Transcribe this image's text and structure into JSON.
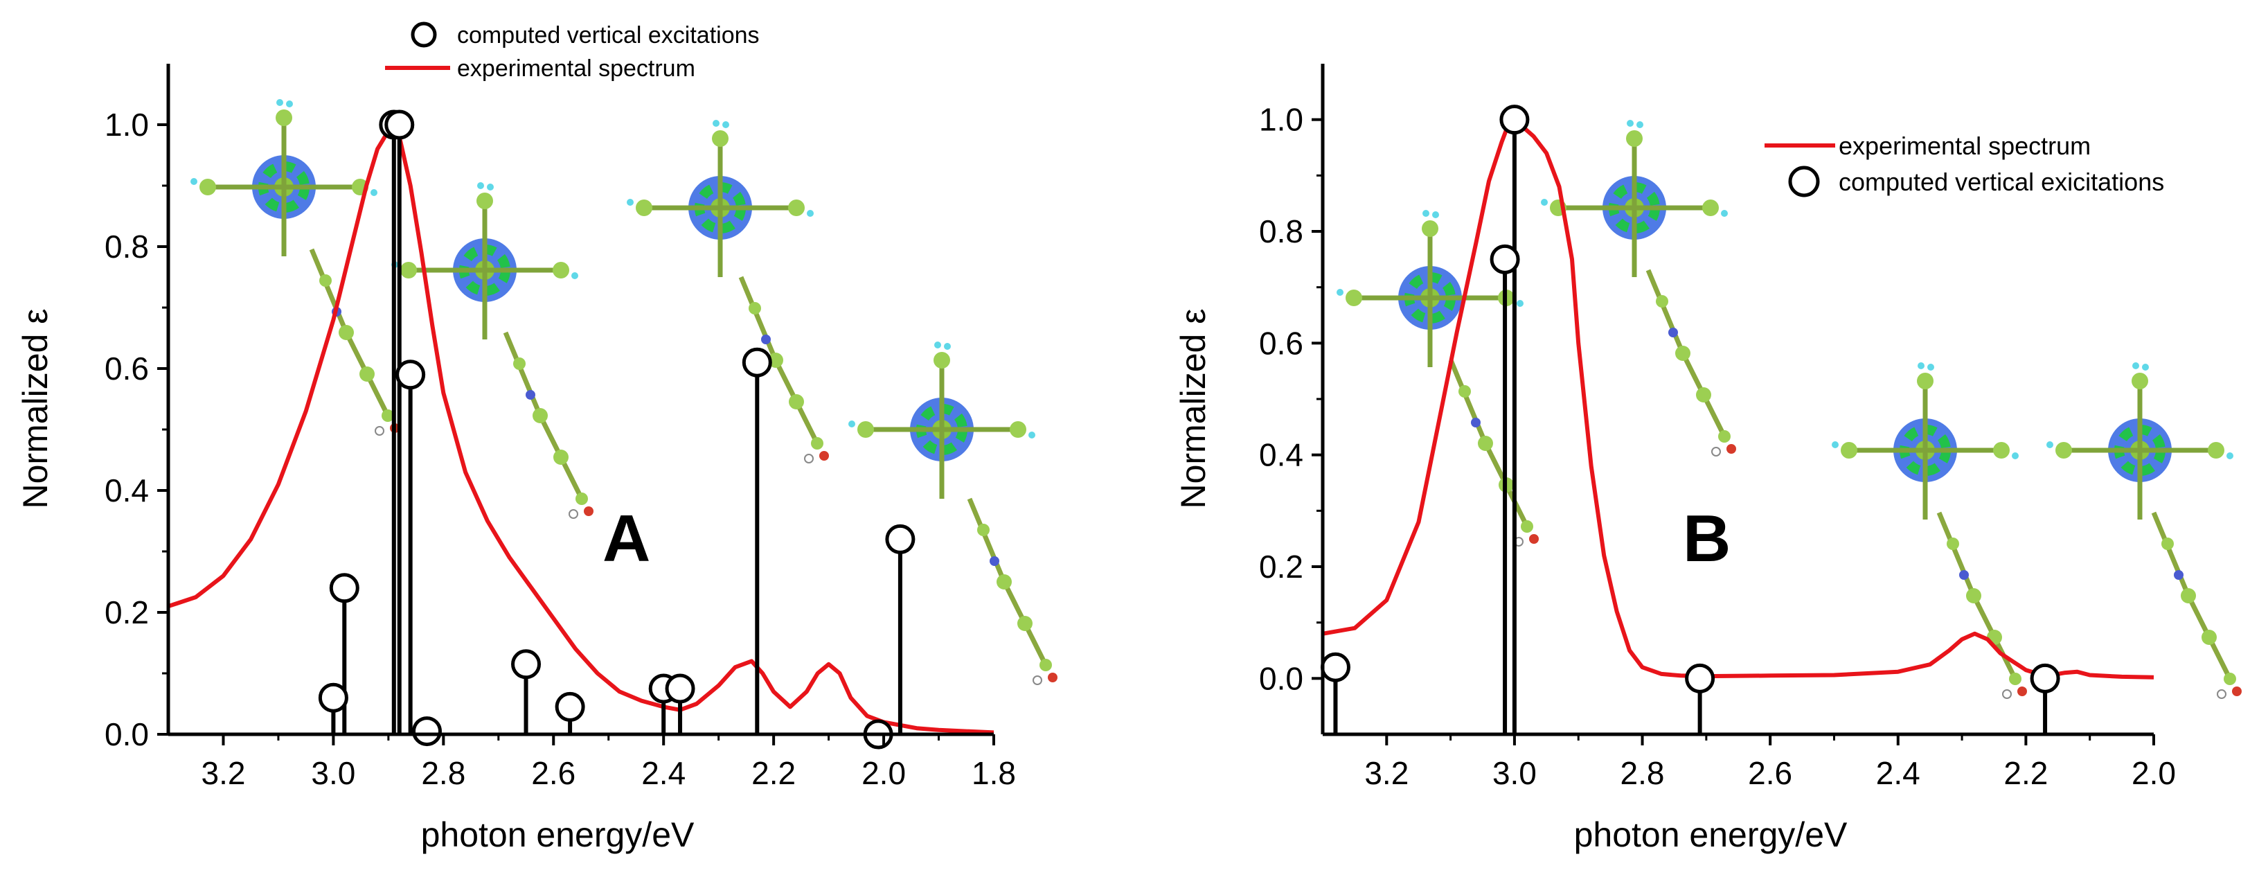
{
  "chart_data": [
    {
      "id": "A",
      "type": "line",
      "panel_label": "A",
      "xlabel": "photon energy/eV",
      "ylabel": "Normalized ε",
      "xlim": [
        3.3,
        1.8
      ],
      "ylim": [
        0.0,
        1.1
      ],
      "x_reversed": true,
      "xticks": [
        "3.2",
        "3.0",
        "2.8",
        "2.6",
        "2.4",
        "2.2",
        "2.0",
        "1.8"
      ],
      "xtick_values": [
        3.2,
        3.0,
        2.8,
        2.6,
        2.4,
        2.2,
        2.0,
        1.8
      ],
      "yticks": [
        "0.0",
        "0.2",
        "0.4",
        "0.6",
        "0.8",
        "1.0"
      ],
      "ytick_values": [
        0.0,
        0.2,
        0.4,
        0.6,
        0.8,
        1.0
      ],
      "legend": {
        "position": "top-center",
        "entries": [
          "computed vertical excitations",
          "experimental spectrum"
        ]
      },
      "series": [
        {
          "name": "experimental spectrum",
          "kind": "line",
          "color": "#e8141a",
          "x": [
            3.3,
            3.25,
            3.2,
            3.15,
            3.1,
            3.05,
            3.0,
            2.97,
            2.94,
            2.92,
            2.9,
            2.89,
            2.88,
            2.86,
            2.84,
            2.82,
            2.8,
            2.76,
            2.72,
            2.68,
            2.64,
            2.6,
            2.56,
            2.52,
            2.48,
            2.44,
            2.4,
            2.37,
            2.34,
            2.3,
            2.27,
            2.24,
            2.22,
            2.2,
            2.17,
            2.14,
            2.12,
            2.1,
            2.08,
            2.06,
            2.03,
            2.0,
            1.97,
            1.94,
            1.9,
            1.85,
            1.8
          ],
          "y": [
            0.21,
            0.225,
            0.26,
            0.32,
            0.41,
            0.53,
            0.68,
            0.79,
            0.9,
            0.96,
            0.99,
            1.0,
            0.98,
            0.9,
            0.79,
            0.67,
            0.56,
            0.43,
            0.35,
            0.29,
            0.24,
            0.19,
            0.14,
            0.1,
            0.07,
            0.055,
            0.045,
            0.04,
            0.05,
            0.08,
            0.11,
            0.12,
            0.1,
            0.07,
            0.045,
            0.07,
            0.1,
            0.115,
            0.1,
            0.06,
            0.03,
            0.02,
            0.015,
            0.01,
            0.007,
            0.005,
            0.003
          ]
        },
        {
          "name": "computed vertical excitations",
          "kind": "stem",
          "color": "#000000",
          "x": [
            3.0,
            2.98,
            2.89,
            2.88,
            2.86,
            2.83,
            2.65,
            2.57,
            2.4,
            2.37,
            2.23,
            2.01,
            1.97
          ],
          "y": [
            0.06,
            0.24,
            1.0,
            1.0,
            0.59,
            0.005,
            0.115,
            0.045,
            0.075,
            0.075,
            0.61,
            0.0,
            0.32
          ]
        }
      ]
    },
    {
      "id": "B",
      "type": "line",
      "panel_label": "B",
      "xlabel": "photon energy/eV",
      "ylabel": "Normalized ε",
      "xlim": [
        3.3,
        2.0
      ],
      "ylim": [
        -0.1,
        1.1
      ],
      "x_reversed": true,
      "xticks": [
        "3.2",
        "3.0",
        "2.8",
        "2.6",
        "2.4",
        "2.2",
        "2.0"
      ],
      "xtick_values": [
        3.2,
        3.0,
        2.8,
        2.6,
        2.4,
        2.2,
        2.0
      ],
      "yticks": [
        "0.0",
        "0.2",
        "0.4",
        "0.6",
        "0.8",
        "1.0"
      ],
      "ytick_values": [
        0.0,
        0.2,
        0.4,
        0.6,
        0.8,
        1.0
      ],
      "legend": {
        "position": "top-right",
        "entries": [
          "experimental spectrum",
          "computed vertical exicitations"
        ]
      },
      "series": [
        {
          "name": "experimental spectrum",
          "kind": "line",
          "color": "#e8141a",
          "x": [
            3.3,
            3.25,
            3.2,
            3.15,
            3.12,
            3.09,
            3.06,
            3.04,
            3.02,
            3.01,
            3.0,
            2.99,
            2.97,
            2.95,
            2.93,
            2.91,
            2.9,
            2.88,
            2.86,
            2.84,
            2.82,
            2.8,
            2.77,
            2.74,
            2.7,
            2.6,
            2.5,
            2.4,
            2.35,
            2.32,
            2.3,
            2.28,
            2.26,
            2.24,
            2.22,
            2.2,
            2.18,
            2.16,
            2.14,
            2.12,
            2.1,
            2.05,
            2.0
          ],
          "y": [
            0.08,
            0.09,
            0.14,
            0.28,
            0.45,
            0.62,
            0.78,
            0.89,
            0.96,
            0.99,
            1.0,
            0.99,
            0.97,
            0.94,
            0.88,
            0.75,
            0.6,
            0.38,
            0.22,
            0.12,
            0.05,
            0.02,
            0.008,
            0.005,
            0.004,
            0.005,
            0.006,
            0.012,
            0.025,
            0.05,
            0.07,
            0.08,
            0.07,
            0.045,
            0.03,
            0.015,
            0.008,
            0.006,
            0.01,
            0.012,
            0.006,
            0.003,
            0.002
          ]
        },
        {
          "name": "computed vertical exicitations",
          "kind": "stem",
          "color": "#000000",
          "x": [
            3.28,
            3.015,
            3.0,
            2.71,
            2.17
          ],
          "y": [
            0.02,
            0.75,
            1.0,
            0.0,
            0.0
          ]
        }
      ]
    }
  ]
}
